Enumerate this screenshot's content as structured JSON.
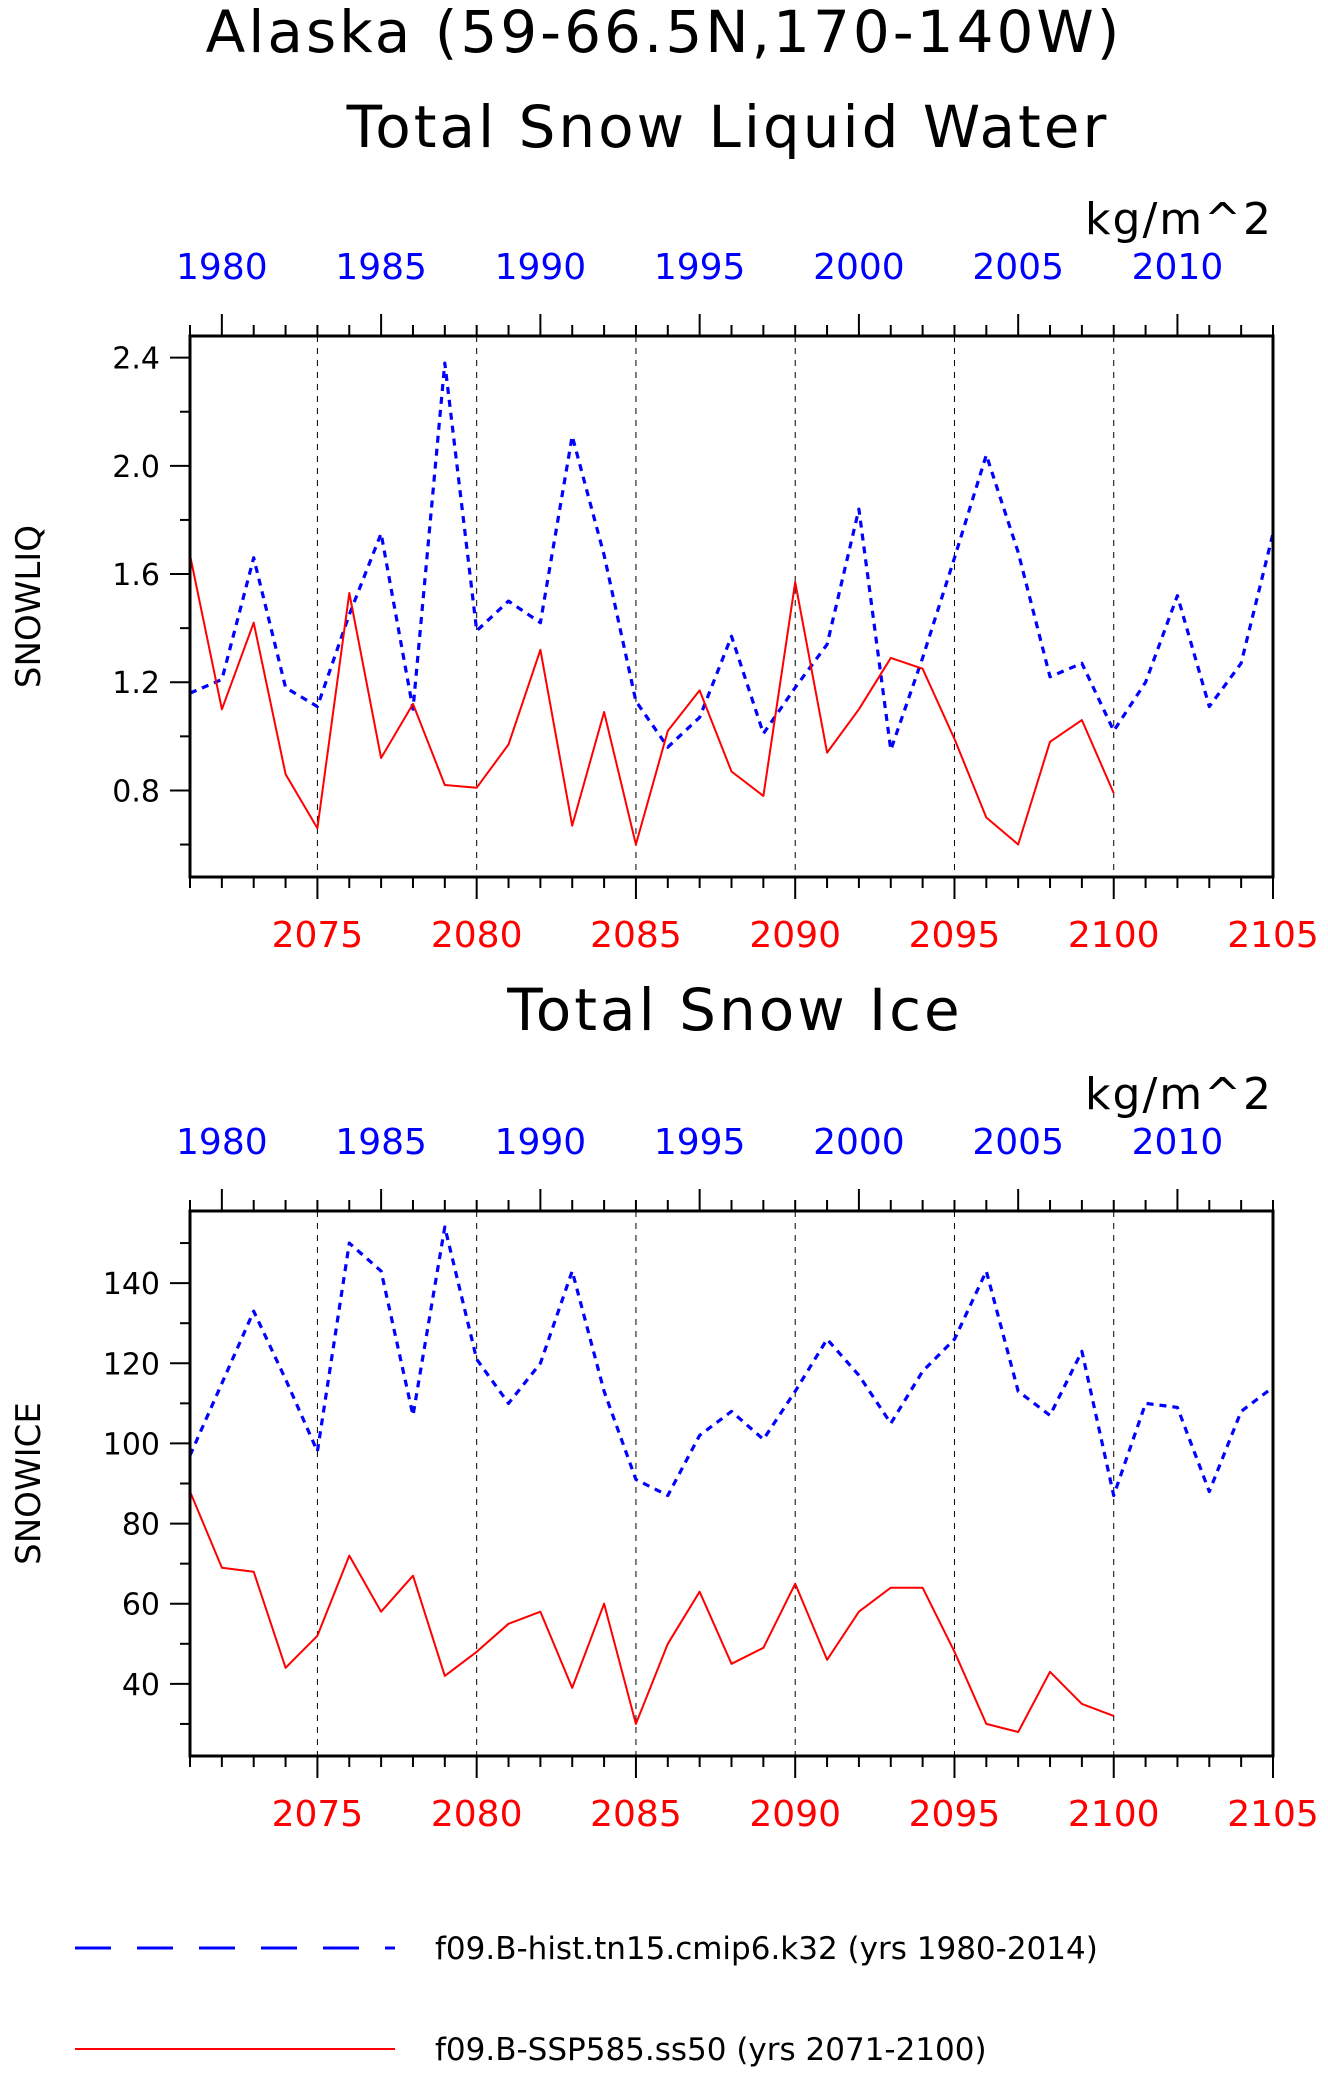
{
  "figure": {
    "title_line1": "Alaska (59-66.5N,170-140W)",
    "title_line2": "Total Snow Liquid Water",
    "title_panel2": "Total Snow Ice"
  },
  "colors": {
    "hist": "#0000ff",
    "ssp": "#ff0000",
    "axis": "#000000"
  },
  "legend": {
    "hist": "f09.B-hist.tn15.cmip6.k32 (yrs 1980-2014)",
    "ssp": "f09.B-SSP585.ss50 (yrs 2071-2100)"
  },
  "chart_data": [
    {
      "type": "line",
      "title": "Total Snow Liquid Water",
      "units": "kg/m^2",
      "ylabel": "SNOWLIQ",
      "ylim": [
        0.48,
        2.48
      ],
      "yticks_major": [
        0.8,
        1.2,
        1.6,
        2.0,
        2.4
      ],
      "yticks_minor": [
        0.6,
        1.0,
        1.4,
        1.8,
        2.2
      ],
      "x_top_axis": {
        "range": [
          1979,
          2013
        ],
        "ticks": [
          1980,
          1985,
          1990,
          1995,
          2000,
          2005,
          2010
        ]
      },
      "x_bottom_axis": {
        "range": [
          2071,
          2105
        ],
        "ticks": [
          2075,
          2080,
          2085,
          2090,
          2095,
          2100,
          2105
        ]
      },
      "vgrid": [
        2075,
        2080,
        2085,
        2090,
        2095,
        2100
      ],
      "series": [
        {
          "name": "f09.B-hist.tn15.cmip6.k32 (yrs 1980-2014)",
          "axis": "top",
          "x": [
            1979,
            1980,
            1981,
            1982,
            1983,
            1984,
            1985,
            1986,
            1987,
            1988,
            1989,
            1990,
            1991,
            1992,
            1993,
            1994,
            1995,
            1996,
            1997,
            1998,
            1999,
            2000,
            2001,
            2002,
            2003,
            2004,
            2005,
            2006,
            2007,
            2008,
            2009,
            2010,
            2011,
            2012,
            2013
          ],
          "values": [
            1.16,
            1.21,
            1.66,
            1.18,
            1.11,
            1.45,
            1.75,
            1.1,
            2.38,
            1.39,
            1.5,
            1.42,
            2.11,
            1.67,
            1.13,
            0.96,
            1.07,
            1.37,
            1.01,
            1.18,
            1.34,
            1.84,
            0.95,
            1.29,
            1.66,
            2.04,
            1.68,
            1.22,
            1.27,
            1.02,
            1.2,
            1.52,
            1.11,
            1.27,
            1.75
          ]
        },
        {
          "name": "f09.B-SSP585.ss50 (yrs 2071-2100)",
          "axis": "bottom",
          "x": [
            2071,
            2072,
            2073,
            2074,
            2075,
            2076,
            2077,
            2078,
            2079,
            2080,
            2081,
            2082,
            2083,
            2084,
            2085,
            2086,
            2087,
            2088,
            2089,
            2090,
            2091,
            2092,
            2093,
            2094,
            2095,
            2096,
            2097,
            2098,
            2099,
            2100
          ],
          "values": [
            1.67,
            1.1,
            1.42,
            0.86,
            0.66,
            1.53,
            0.92,
            1.12,
            0.82,
            0.81,
            0.97,
            1.32,
            0.67,
            1.09,
            0.6,
            1.02,
            1.17,
            0.87,
            0.78,
            1.57,
            0.94,
            1.1,
            1.29,
            1.25,
            0.99,
            0.7,
            0.6,
            0.98,
            1.06,
            0.79
          ]
        }
      ]
    },
    {
      "type": "line",
      "title": "Total Snow Ice",
      "units": "kg/m^2",
      "ylabel": "SNOWICE",
      "ylim": [
        22,
        158
      ],
      "yticks_major": [
        40,
        60,
        80,
        100,
        120,
        140
      ],
      "yticks_minor": [
        30,
        50,
        70,
        90,
        110,
        130,
        150
      ],
      "x_top_axis": {
        "range": [
          1979,
          2013
        ],
        "ticks": [
          1980,
          1985,
          1990,
          1995,
          2000,
          2005,
          2010
        ]
      },
      "x_bottom_axis": {
        "range": [
          2071,
          2105
        ],
        "ticks": [
          2075,
          2080,
          2085,
          2090,
          2095,
          2100,
          2105
        ]
      },
      "vgrid": [
        2075,
        2080,
        2085,
        2090,
        2095,
        2100
      ],
      "series": [
        {
          "name": "f09.B-hist.tn15.cmip6.k32 (yrs 1980-2014)",
          "axis": "top",
          "x": [
            1979,
            1980,
            1981,
            1982,
            1983,
            1984,
            1985,
            1986,
            1987,
            1988,
            1989,
            1990,
            1991,
            1992,
            1993,
            1994,
            1995,
            1996,
            1997,
            1998,
            1999,
            2000,
            2001,
            2002,
            2003,
            2004,
            2005,
            2006,
            2007,
            2008,
            2009,
            2010,
            2011,
            2012,
            2013
          ],
          "values": [
            97,
            115,
            133,
            116,
            98,
            150,
            143,
            107,
            154,
            121,
            110,
            120,
            143,
            113,
            91,
            87,
            102,
            108,
            101,
            113,
            126,
            117,
            105,
            118,
            126,
            143,
            113,
            107,
            123,
            87,
            110,
            109,
            88,
            108,
            114
          ]
        },
        {
          "name": "f09.B-SSP585.ss50 (yrs 2071-2100)",
          "axis": "bottom",
          "x": [
            2071,
            2072,
            2073,
            2074,
            2075,
            2076,
            2077,
            2078,
            2079,
            2080,
            2081,
            2082,
            2083,
            2084,
            2085,
            2086,
            2087,
            2088,
            2089,
            2090,
            2091,
            2092,
            2093,
            2094,
            2095,
            2096,
            2097,
            2098,
            2099,
            2100
          ],
          "values": [
            88,
            69,
            68,
            44,
            52,
            72,
            58,
            67,
            42,
            48,
            55,
            58,
            39,
            60,
            30,
            50,
            63,
            45,
            49,
            65,
            46,
            58,
            64,
            64,
            48,
            30,
            28,
            43,
            35,
            32
          ]
        }
      ]
    }
  ]
}
